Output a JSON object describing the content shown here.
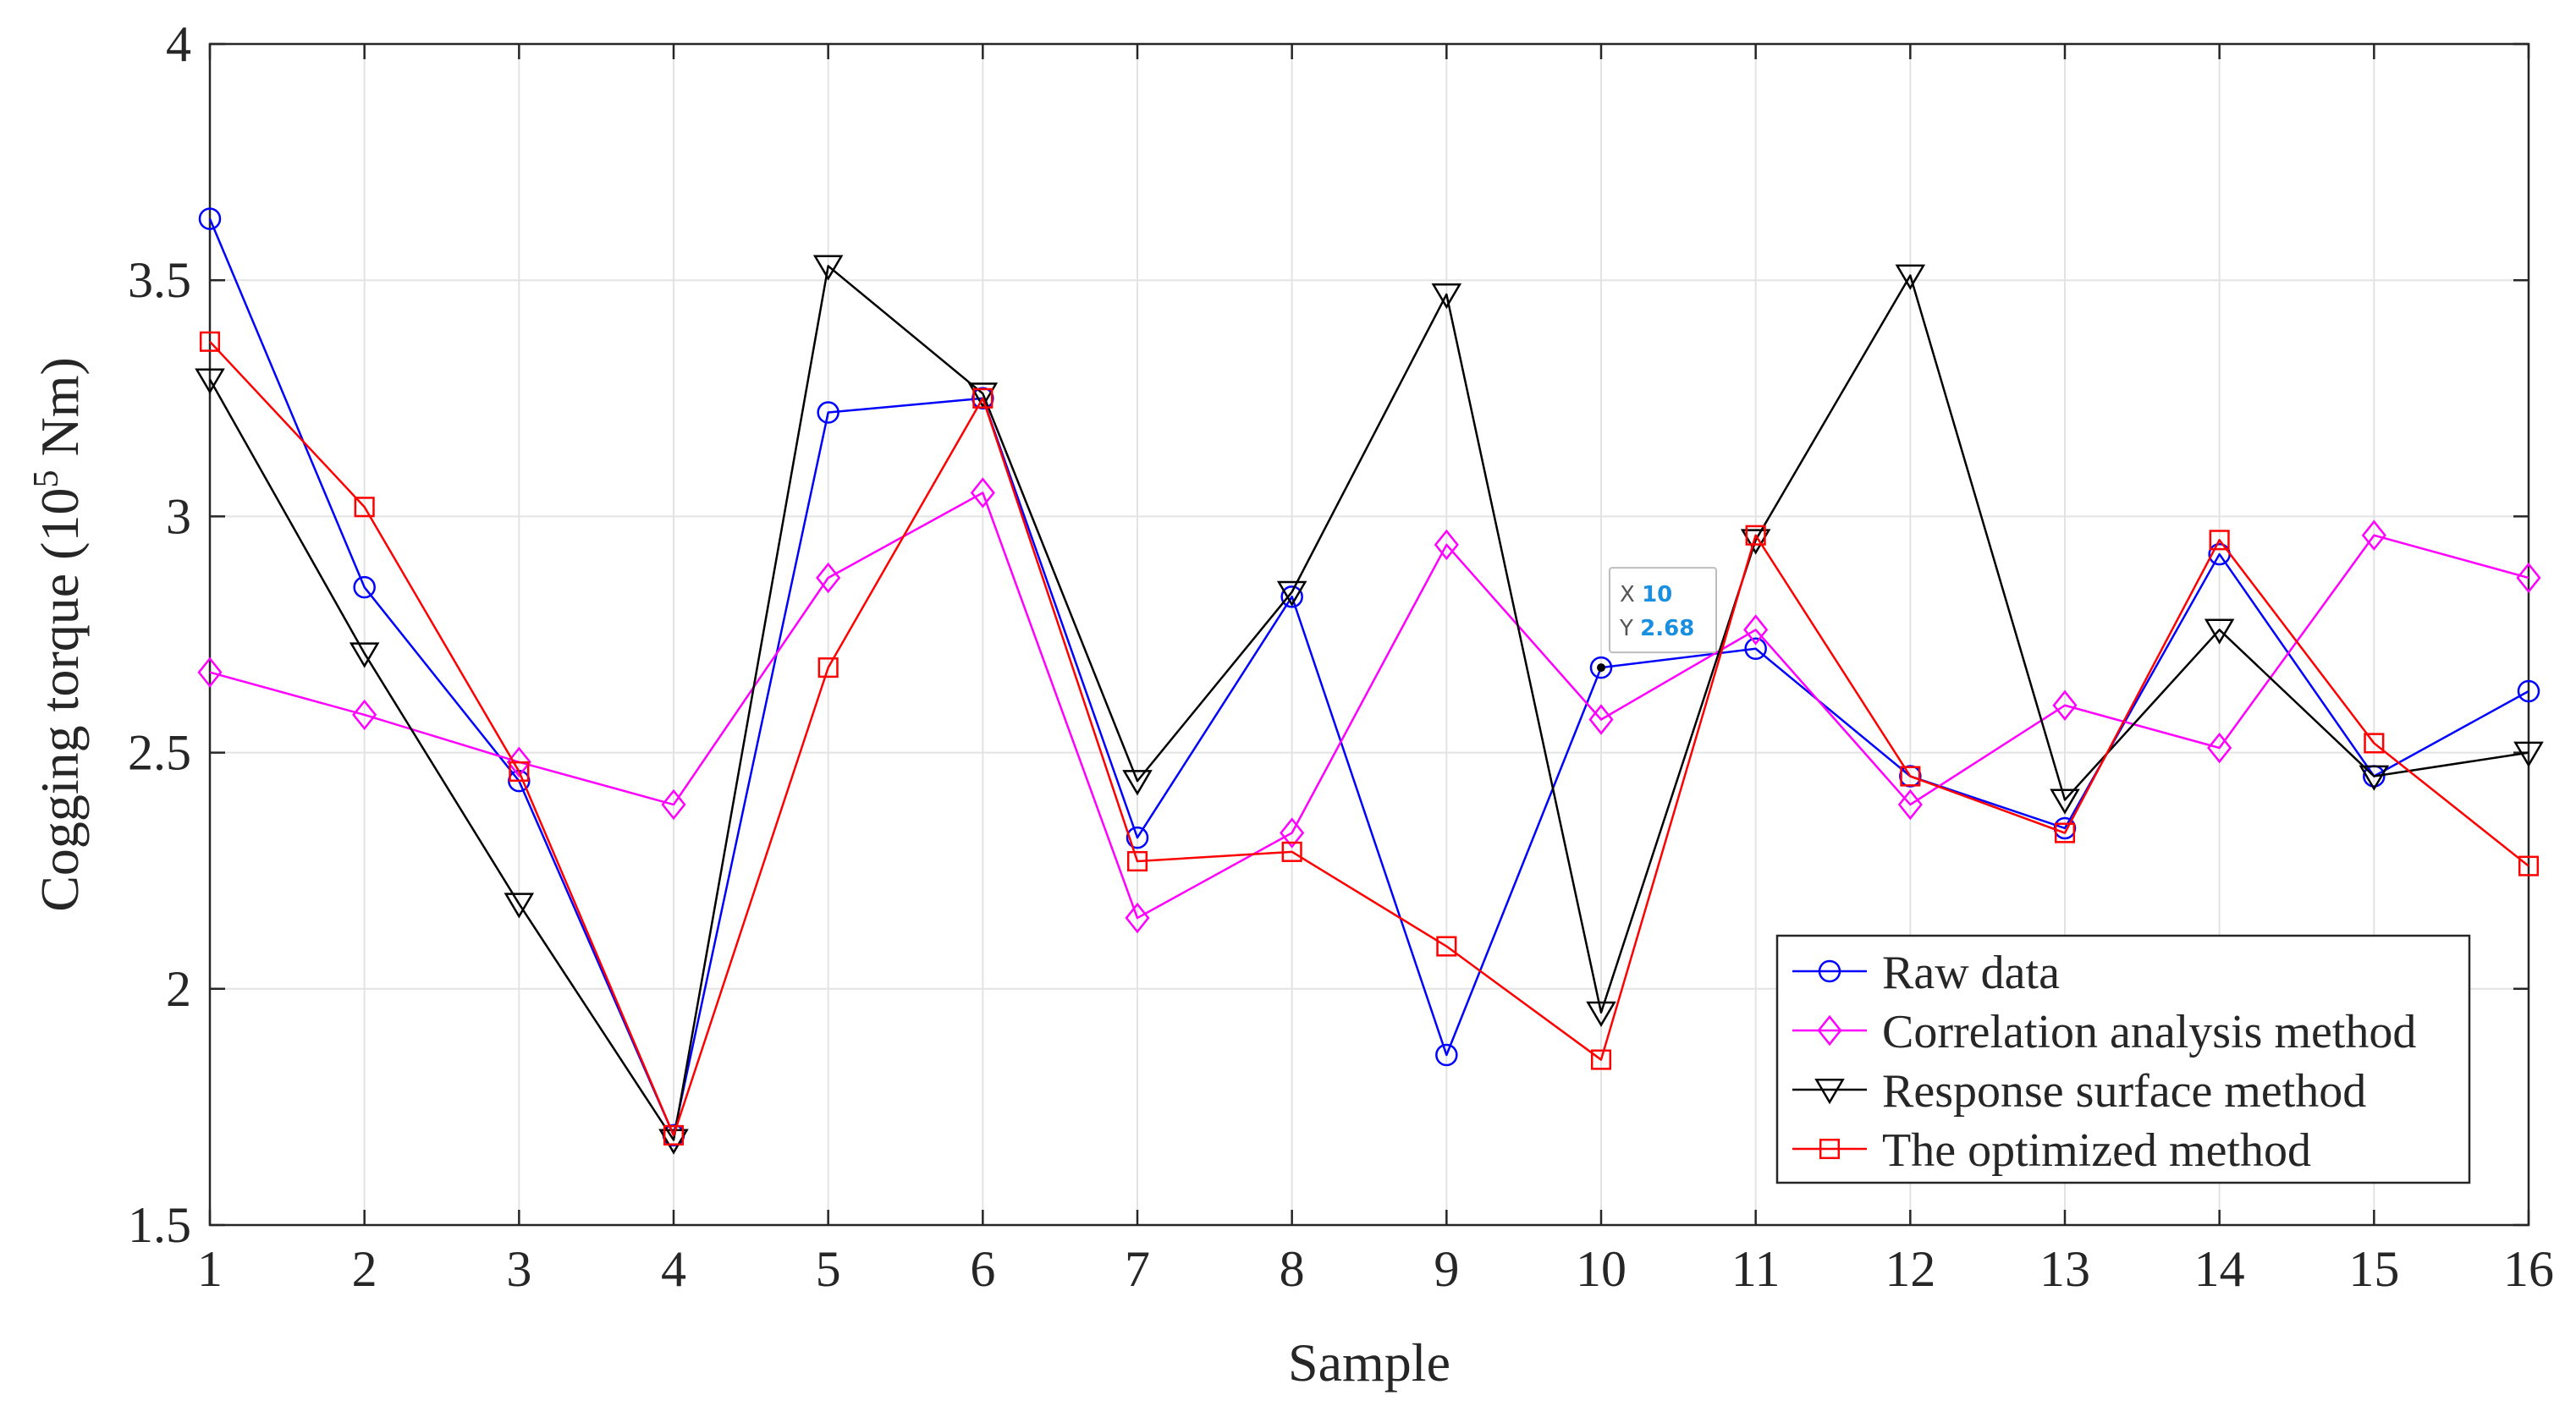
{
  "chart_data": {
    "type": "line",
    "xlabel": "Sample",
    "ylabel_main": "Cogging torque (10",
    "ylabel_sup": "5",
    "ylabel_tail": " Nm)",
    "xlim": [
      1,
      16
    ],
    "ylim": [
      1.5,
      4
    ],
    "x": [
      1,
      2,
      3,
      4,
      5,
      6,
      7,
      8,
      9,
      10,
      11,
      12,
      13,
      14,
      15,
      16
    ],
    "x_tick_labels": [
      "1",
      "2",
      "3",
      "4",
      "5",
      "6",
      "7",
      "8",
      "9",
      "10",
      "11",
      "12",
      "13",
      "14",
      "15",
      "16"
    ],
    "y_ticks": [
      1.5,
      2,
      2.5,
      3,
      3.5,
      4
    ],
    "y_tick_labels": [
      "1.5",
      "2",
      "2.5",
      "3",
      "3.5",
      "4"
    ],
    "grid": true,
    "legend_position": "bottom-right",
    "series": [
      {
        "name": "Raw data",
        "color": "#0000ff",
        "marker": "circle",
        "values": [
          3.63,
          2.85,
          2.44,
          1.69,
          3.22,
          3.25,
          2.32,
          2.83,
          1.86,
          2.68,
          2.72,
          2.45,
          2.34,
          2.92,
          2.45,
          2.63
        ]
      },
      {
        "name": "Correlation analysis method",
        "color": "#ff00ff",
        "marker": "diamond",
        "values": [
          2.67,
          2.58,
          2.48,
          2.39,
          2.87,
          3.05,
          2.15,
          2.33,
          2.94,
          2.57,
          2.76,
          2.39,
          2.6,
          2.51,
          2.96,
          2.87
        ]
      },
      {
        "name": "Response surface method",
        "color": "#000000",
        "marker": "triangle-down",
        "values": [
          3.29,
          2.71,
          2.18,
          1.68,
          3.53,
          3.26,
          2.44,
          2.84,
          3.47,
          1.95,
          2.95,
          3.51,
          2.4,
          2.76,
          2.45,
          2.5
        ]
      },
      {
        "name": "The optimized method",
        "color": "#ff0000",
        "marker": "square",
        "values": [
          3.37,
          3.02,
          2.46,
          1.69,
          2.68,
          3.25,
          2.27,
          2.29,
          2.09,
          1.85,
          2.96,
          2.45,
          2.33,
          2.95,
          2.52,
          2.26
        ]
      }
    ],
    "datatip": {
      "x_label": "X",
      "x_value": "10",
      "y_label": "Y",
      "y_value": "2.68",
      "value_color": "#1a8fe0",
      "at_x": 10,
      "at_y": 2.68
    }
  }
}
